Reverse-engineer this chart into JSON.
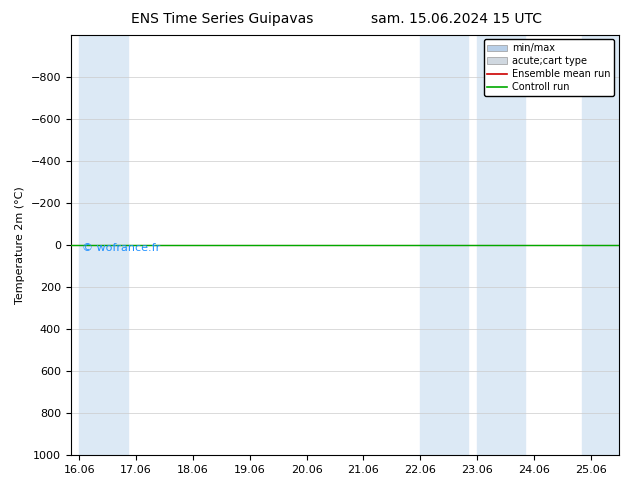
{
  "title_left": "ENS Time Series Guipavas",
  "title_right": "sam. 15.06.2024 15 UTC",
  "ylabel": "Temperature 2m (°C)",
  "ylim_bottom": -1000,
  "ylim_top": 1000,
  "yticks": [
    -800,
    -600,
    -400,
    -200,
    0,
    200,
    400,
    600,
    800,
    1000
  ],
  "xtick_labels": [
    "16.06",
    "17.06",
    "18.06",
    "19.06",
    "20.06",
    "21.06",
    "22.06",
    "23.06",
    "24.06",
    "25.06"
  ],
  "xtick_positions": [
    0,
    1,
    2,
    3,
    4,
    5,
    6,
    7,
    8,
    9
  ],
  "shaded_bands": [
    {
      "xmin": 0.0,
      "xmax": 0.85
    },
    {
      "xmin": 6.0,
      "xmax": 6.85
    },
    {
      "xmin": 7.0,
      "xmax": 7.85
    },
    {
      "xmin": 8.85,
      "xmax": 9.5
    }
  ],
  "green_line_y": 0,
  "red_line_y": 0,
  "legend_items": [
    {
      "label": "min/max",
      "color": "#b8cfe8",
      "type": "band"
    },
    {
      "label": "acute;cart type",
      "color": "#d0d8e0",
      "type": "band"
    },
    {
      "label": "Ensemble mean run",
      "color": "#cc0000",
      "type": "line"
    },
    {
      "label": "Controll run",
      "color": "#00aa00",
      "type": "line"
    }
  ],
  "watermark": "© wofrance.fr",
  "watermark_color": "#1E90FF",
  "background_color": "#ffffff",
  "band_color": "#dce9f5",
  "grid_color": "#cccccc",
  "title_fontsize": 10,
  "axis_label_fontsize": 8,
  "tick_fontsize": 8
}
